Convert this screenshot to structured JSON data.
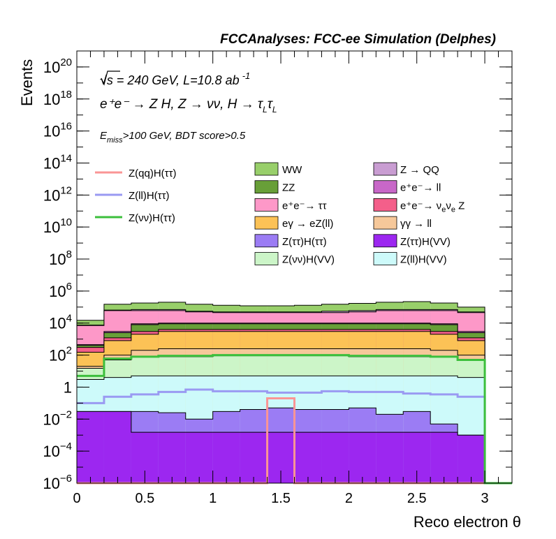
{
  "header": {
    "title": "FCCAnalyses: FCC-ee Simulation (Delphes)"
  },
  "annotations": {
    "line1": "√s = 240 GeV, L=10.8 ab",
    "line1_sup": "-1",
    "line2": "e⁺e⁻ → Z H, Z → νν, H → τ",
    "line2_sub1": "L",
    "line2_tau": "τ",
    "line2_sub2": "L",
    "line3_e": "E",
    "line3_sub": "miss",
    "line3_rest": ">100 GeV, BDT score>0.5"
  },
  "chart_data": {
    "type": "bar",
    "stacked": true,
    "y_scale": "log",
    "xlabel": "Reco electron θ",
    "ylabel": "Events",
    "xlim": [
      0,
      3.2
    ],
    "ylim": [
      1e-06,
      1e+21
    ],
    "bin_edges": [
      0,
      0.2,
      0.4,
      0.6,
      0.8,
      1.0,
      1.2,
      1.4,
      1.6,
      1.8,
      2.0,
      2.2,
      2.4,
      2.6,
      2.8,
      3.0
    ],
    "x_ticks": [
      {
        "v": 0,
        "label": "0"
      },
      {
        "v": 0.5,
        "label": "0.5"
      },
      {
        "v": 1,
        "label": "1"
      },
      {
        "v": 1.5,
        "label": "1.5"
      },
      {
        "v": 2,
        "label": "2"
      },
      {
        "v": 2.5,
        "label": "2.5"
      },
      {
        "v": 3,
        "label": "3"
      }
    ],
    "y_ticks": [
      {
        "exp": -6,
        "base": "10",
        "sup": "−6"
      },
      {
        "exp": -4,
        "base": "10",
        "sup": "−4"
      },
      {
        "exp": -2,
        "base": "10",
        "sup": "−2"
      },
      {
        "exp": 0,
        "base": "1",
        "sup": ""
      },
      {
        "exp": 2,
        "base": "10",
        "sup": "2"
      },
      {
        "exp": 4,
        "base": "10",
        "sup": "4"
      },
      {
        "exp": 6,
        "base": "10",
        "sup": "6"
      },
      {
        "exp": 8,
        "base": "10",
        "sup": "8"
      },
      {
        "exp": 10,
        "base": "10",
        "sup": "10"
      },
      {
        "exp": 12,
        "base": "10",
        "sup": "12"
      },
      {
        "exp": 14,
        "base": "10",
        "sup": "14"
      },
      {
        "exp": 16,
        "base": "10",
        "sup": "16"
      },
      {
        "exp": 18,
        "base": "10",
        "sup": "18"
      },
      {
        "exp": 20,
        "base": "10",
        "sup": "20"
      }
    ],
    "stack_cumulative": [
      {
        "name": "Z(ττ)H(VV)",
        "color": "#9c27f0",
        "tops": [
          0.03,
          0.03,
          0.0015,
          0.0015,
          0.0015,
          0.0015,
          0.0015,
          0.0015,
          0.0015,
          0.0015,
          0.0015,
          0.0015,
          0.0015,
          0.0015,
          0.001
        ]
      },
      {
        "name": "Z(ττ)H(ττ)",
        "color": "#9b7cf4",
        "tops": [
          0.03,
          0.03,
          0.03,
          0.025,
          0.01,
          0.03,
          0.04,
          0.05,
          0.04,
          0.04,
          0.05,
          0.02,
          0.03,
          0.005,
          0.001
        ]
      },
      {
        "name": "Z(ll)H(VV)",
        "color": "#cdfafa",
        "tops": [
          3,
          4,
          5,
          5,
          5,
          5,
          5,
          5,
          5,
          5,
          5,
          5,
          5,
          5,
          4
        ]
      },
      {
        "name": "Z(νν)H(VV)",
        "color": "#ccf5c8",
        "tops": [
          15,
          50,
          80,
          80,
          80,
          90,
          90,
          90,
          90,
          90,
          80,
          80,
          80,
          80,
          50
        ]
      },
      {
        "name": "γγ → ll",
        "color": "#f6c89a",
        "tops": [
          20,
          100,
          200,
          250,
          250,
          250,
          250,
          250,
          250,
          250,
          250,
          250,
          250,
          200,
          100
        ]
      },
      {
        "name": "eγ → eZ(ll)",
        "color": "#fcc256",
        "tops": [
          150,
          800,
          2000,
          3000,
          3000,
          3000,
          3000,
          3000,
          3000,
          3000,
          3000,
          3000,
          3000,
          2000,
          800
        ]
      },
      {
        "name": "e⁺e⁻ → ν_eν_e Z",
        "color": "#f45f8a",
        "tops": [
          300,
          1200,
          3000,
          4000,
          4000,
          4000,
          4000,
          4000,
          4000,
          4000,
          4000,
          4000,
          4000,
          3000,
          1200
        ]
      },
      {
        "name": "ZZ",
        "color": "#689f38",
        "tops": [
          400,
          2500,
          8000,
          9000,
          9000,
          9000,
          9000,
          9000,
          9000,
          9000,
          9000,
          9000,
          9000,
          8000,
          2500
        ]
      },
      {
        "name": "e⁺e⁻ → ll",
        "color": "#c867c8",
        "tops": [
          450,
          3000,
          9000,
          10000,
          10000,
          10000,
          10000,
          10000,
          10000,
          10000,
          10000,
          10000,
          10000,
          9000,
          3000
        ]
      },
      {
        "name": "e⁺e⁻ → ττ",
        "color": "#fd98c8",
        "tops": [
          7000,
          60000,
          60000,
          60000,
          50000,
          45000,
          45000,
          45000,
          45000,
          45000,
          50000,
          60000,
          60000,
          60000,
          45000
        ]
      },
      {
        "name": "Z → QQ",
        "color": "#c99dd2",
        "tops": [
          7500,
          65000,
          70000,
          70000,
          55000,
          50000,
          50000,
          50000,
          50000,
          55000,
          60000,
          70000,
          70000,
          70000,
          50000
        ]
      },
      {
        "name": "WW",
        "color": "#98cf6a",
        "tops": [
          15000,
          150000,
          180000,
          200000,
          150000,
          130000,
          120000,
          120000,
          130000,
          150000,
          170000,
          200000,
          220000,
          180000,
          100000
        ]
      }
    ],
    "lines": [
      {
        "name": "Z(qq)H(ττ)",
        "color": "#fa9595",
        "values": [
          1e-06,
          1e-06,
          1e-06,
          1e-06,
          1e-06,
          1e-06,
          1e-06,
          0.2,
          1e-06,
          1e-06,
          1e-06,
          1e-06,
          1e-06,
          1e-06,
          1e-06
        ]
      },
      {
        "name": "Z(ll)H(ττ)",
        "color": "#9a9af2",
        "values": [
          0.1,
          0.25,
          0.35,
          0.5,
          0.7,
          0.55,
          0.55,
          0.45,
          0.45,
          0.55,
          0.5,
          0.5,
          0.4,
          0.35,
          0.25
        ]
      },
      {
        "name": "Z(νν)H(ττ)",
        "color": "#3cbf3c",
        "values": [
          5,
          60,
          80,
          90,
          90,
          100,
          100,
          100,
          100,
          100,
          90,
          90,
          90,
          80,
          50
        ]
      }
    ]
  },
  "legend": {
    "lines": [
      {
        "label": "Z(qq)H(ττ)",
        "color": "#fa9595"
      },
      {
        "label": "Z(ll)H(ττ)",
        "color": "#9a9af2"
      },
      {
        "label": "Z(νν)H(ττ)",
        "color": "#3cbf3c"
      }
    ],
    "boxes_col1": [
      {
        "label": "WW",
        "color": "#98cf6a"
      },
      {
        "label": "ZZ",
        "color": "#689f38"
      },
      {
        "label": "e⁺e⁻→ ττ",
        "color": "#fd98c8"
      },
      {
        "label": "eγ → eZ(ll)",
        "color": "#fcc256"
      },
      {
        "label": "Z(ττ)H(ττ)",
        "color": "#9b7cf4"
      },
      {
        "label": "Z(νν)H(VV)",
        "color": "#ccf5c8"
      }
    ],
    "boxes_col2": [
      {
        "label": "Z → QQ",
        "color": "#c99dd2"
      },
      {
        "label": "e⁺e⁻→ ll",
        "color": "#c867c8"
      },
      {
        "label": "e⁺e⁻→ ν_eν_e Z",
        "color": "#f45f8a"
      },
      {
        "label": "γγ → ll",
        "color": "#f6c89a"
      },
      {
        "label": "Z(ττ)H(VV)",
        "color": "#9c27f0"
      },
      {
        "label": "Z(ll)H(VV)",
        "color": "#cdfafa"
      }
    ]
  }
}
